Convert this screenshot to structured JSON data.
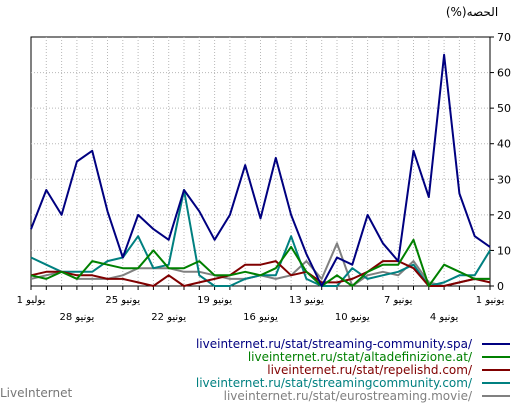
{
  "chart_data": {
    "type": "line",
    "ylabel": "(%)الحصه",
    "ylim": [
      0,
      70
    ],
    "y_ticks": [
      0,
      10,
      20,
      30,
      40,
      50,
      60,
      70
    ],
    "grid": true,
    "x_ticks": [
      {
        "index": 0,
        "label": "1 يونيو"
      },
      {
        "index": 3,
        "label": "4 يونيو"
      },
      {
        "index": 6,
        "label": "7 يونيو"
      },
      {
        "index": 9,
        "label": "10 يونيو"
      },
      {
        "index": 12,
        "label": "13 يونيو"
      },
      {
        "index": 15,
        "label": "16 يونيو"
      },
      {
        "index": 18,
        "label": "19 يونيو"
      },
      {
        "index": 21,
        "label": "22 يونيو"
      },
      {
        "index": 24,
        "label": "25 يونيو"
      },
      {
        "index": 27,
        "label": "28 يونيو"
      },
      {
        "index": 30,
        "label": "1 يوليو"
      }
    ],
    "series": [
      {
        "name": "liveinternet.ru/stat/streaming-community.spa/",
        "color": "#000080",
        "values": [
          11,
          14,
          26,
          65,
          25,
          38,
          7,
          12,
          20,
          6,
          8,
          0,
          9,
          20,
          36,
          19,
          34,
          20,
          13,
          21,
          27,
          13,
          16,
          20,
          8,
          21,
          38,
          35,
          20,
          27,
          16
        ]
      },
      {
        "name": "liveinternet.ru/stat/altadefinizione.at/",
        "color": "#008000",
        "values": [
          2,
          2,
          4,
          6,
          0,
          13,
          6,
          6,
          4,
          0,
          3,
          0,
          4,
          11,
          5,
          3,
          4,
          3,
          3,
          7,
          5,
          5,
          10,
          5,
          5,
          6,
          7,
          2,
          4,
          2,
          3
        ]
      },
      {
        "name": "liveinternet.ru/stat/repelishd.com/",
        "color": "#800000",
        "values": [
          1,
          2,
          1,
          0,
          0,
          5,
          7,
          7,
          4,
          2,
          1,
          1,
          4,
          3,
          7,
          6,
          6,
          3,
          2,
          1,
          0,
          3,
          0,
          1,
          2,
          2,
          3,
          3,
          4,
          4,
          3
        ]
      },
      {
        "name": "liveinternet.ru/stat/streamingcommunity.com/",
        "color": "#008080",
        "values": [
          10,
          3,
          3,
          1,
          0,
          6,
          4,
          3,
          2,
          5,
          0,
          0,
          2,
          14,
          3,
          3,
          2,
          0,
          0,
          3,
          27,
          6,
          5,
          14,
          8,
          7,
          4,
          4,
          4,
          6,
          8
        ]
      },
      {
        "name": "liveinternet.ru/stat/eurostreaming.movie/",
        "color": "#808080",
        "values": [
          2,
          2,
          1,
          0,
          1,
          7,
          3,
          4,
          3,
          0,
          12,
          2,
          7,
          3,
          2,
          3,
          2,
          2,
          3,
          4,
          4,
          5,
          5,
          5,
          3,
          2,
          2,
          2,
          4,
          3,
          2
        ]
      }
    ]
  },
  "footer": "LiveInternet"
}
